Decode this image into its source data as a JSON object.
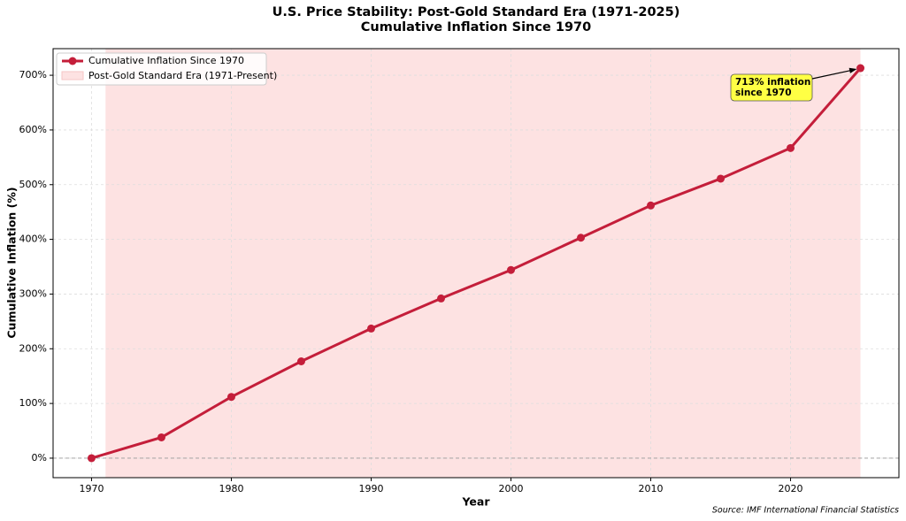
{
  "chart_data": {
    "type": "line",
    "title": "U.S. Price Stability: Post-Gold Standard Era (1971-2025)",
    "subtitle": "Cumulative Inflation Since 1970",
    "x_label": "Year",
    "y_label": "Cumulative Inflation (%)",
    "source": "Source: IMF International Financial Statistics",
    "x": [
      1970,
      1975,
      1980,
      1985,
      1990,
      1995,
      2000,
      2005,
      2010,
      2015,
      2020,
      2025
    ],
    "series": [
      {
        "name": "Cumulative Inflation Since 1970",
        "color": "#c41e3a",
        "values": [
          0,
          38,
          112,
          177,
          237,
          292,
          344,
          403,
          462,
          511,
          567,
          713
        ]
      }
    ],
    "span": {
      "name": "Post-Gold Standard Era (1971-Present)",
      "start": 1971,
      "end": 2025,
      "color": "#fde2e2"
    },
    "hline": 0,
    "annotation": {
      "lines": [
        "713% inflation",
        "since 1970"
      ],
      "color": "#ffff44"
    },
    "xlim": [
      1967.25,
      2027.75
    ],
    "xticks": [
      1970,
      1980,
      1990,
      2000,
      2010,
      2020
    ],
    "ylim": [
      -35.65,
      748.65
    ],
    "yticks": [
      {
        "value": 0,
        "label": "0%"
      },
      {
        "value": 100,
        "label": "100%"
      },
      {
        "value": 200,
        "label": "200%"
      },
      {
        "value": 300,
        "label": "300%"
      },
      {
        "value": 400,
        "label": "400%"
      },
      {
        "value": 500,
        "label": "500%"
      },
      {
        "value": 600,
        "label": "600%"
      },
      {
        "value": 700,
        "label": "700%"
      }
    ],
    "grid": true,
    "legend": "upper-left"
  }
}
